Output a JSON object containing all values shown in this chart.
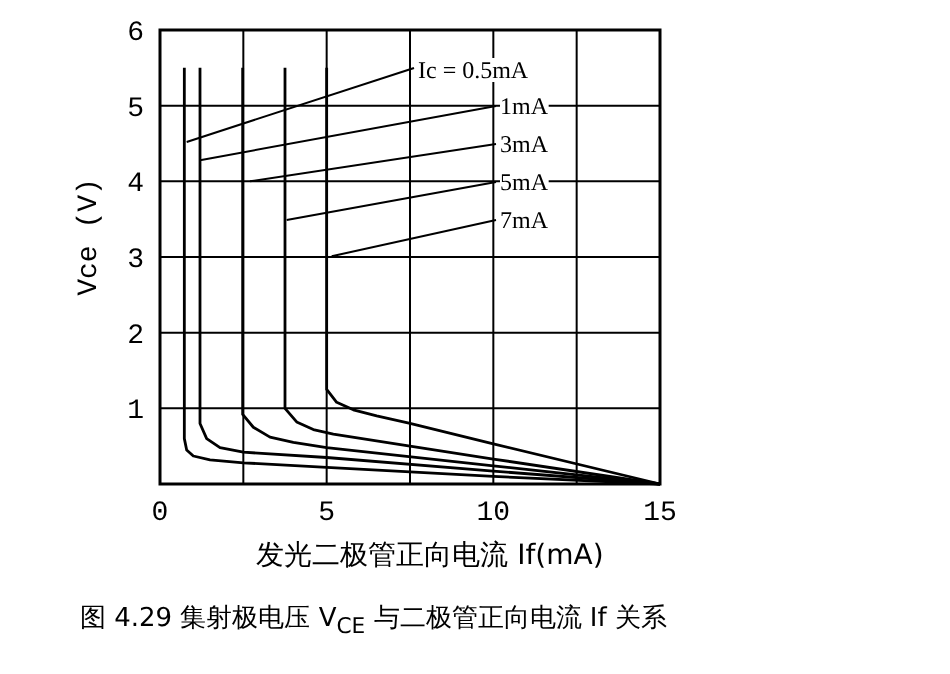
{
  "chart_data": {
    "type": "line",
    "xlabel": "发光二极管正向电流 If(mA)",
    "ylabel": "Vce (V)",
    "xlim": [
      0,
      15
    ],
    "ylim": [
      0,
      6
    ],
    "xticks": [
      0,
      {
        "value": 2.5,
        "label": null
      },
      5,
      {
        "value": 7.5,
        "label": null
      },
      10,
      {
        "value": 12.5,
        "label": null
      },
      15
    ],
    "yticks": [
      1,
      2,
      3,
      4,
      5,
      6
    ],
    "grid": true,
    "marker": "none",
    "line_style": "solid",
    "series": [
      {
        "color": "#000000",
        "x": [
          0.73,
          0.73,
          0.8,
          1.0,
          1.5,
          2.5,
          5,
          10,
          15
        ],
        "values": [
          5.5,
          0.6,
          0.45,
          0.37,
          0.32,
          0.28,
          0.22,
          0.1,
          0
        ]
      },
      {
        "color": "#000000",
        "x": [
          1.2,
          1.2,
          1.4,
          1.8,
          2.5,
          5,
          10,
          15
        ],
        "values": [
          5.5,
          0.8,
          0.6,
          0.48,
          0.42,
          0.35,
          0.17,
          0
        ]
      },
      {
        "color": "#000000",
        "x": [
          2.48,
          2.48,
          2.8,
          3.3,
          4,
          5,
          10,
          15
        ],
        "values": [
          5.5,
          0.92,
          0.75,
          0.62,
          0.55,
          0.48,
          0.24,
          0
        ]
      },
      {
        "color": "#000000",
        "x": [
          3.75,
          3.75,
          4.1,
          4.6,
          5.2,
          7.5,
          10,
          15
        ],
        "values": [
          5.5,
          1.0,
          0.82,
          0.72,
          0.66,
          0.5,
          0.33,
          0
        ]
      },
      {
        "color": "#000000",
        "x": [
          5.0,
          5.0,
          5.3,
          5.8,
          6.5,
          7.5,
          10,
          15
        ],
        "values": [
          5.5,
          1.25,
          1.08,
          0.98,
          0.9,
          0.8,
          0.53,
          0
        ]
      }
    ],
    "annotations": [
      {
        "text": "Ic = 0.5mA",
        "x": 0.8,
        "y": 4.52
      },
      {
        "text": "1mA",
        "x": 1.2,
        "y": 4.28
      },
      {
        "text": "3mA",
        "x": 2.7,
        "y": 4.0
      },
      {
        "text": "5mA",
        "x": 3.8,
        "y": 3.49
      },
      {
        "text": "7mA",
        "x": 5.15,
        "y": 3.01
      },
      "图 4.29 集射极电压 V$_{CE}$ 与二极管正向电流 If 关系"
    ]
  }
}
